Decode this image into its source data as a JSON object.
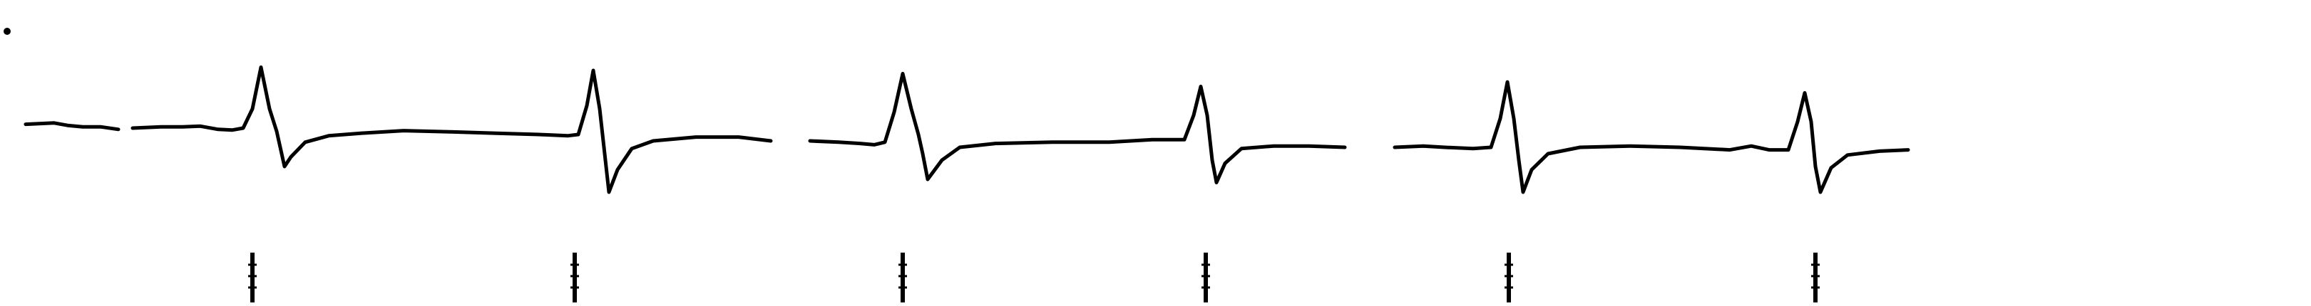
{
  "chart_data": {
    "type": "line",
    "title": "",
    "xlabel": "",
    "ylabel": "",
    "grid": false,
    "legend": "none",
    "xlim": [
      0,
      2760
    ],
    "ylim": [
      -1.2,
      1.2
    ],
    "series": [
      {
        "segments": [
          [
            [
              0,
              0.06
            ],
            [
              40,
              0.08
            ],
            [
              60,
              0.04
            ],
            [
              80,
              0.02
            ],
            [
              105,
              0.02
            ],
            [
              130,
              -0.02
            ]
          ],
          [
            [
              150,
              0.0
            ],
            [
              190,
              0.02
            ],
            [
              220,
              0.02
            ],
            [
              245,
              0.03
            ],
            [
              270,
              -0.02
            ],
            [
              290,
              -0.03
            ],
            [
              305,
              0.0
            ],
            [
              318,
              0.3
            ],
            [
              330,
              0.95
            ],
            [
              342,
              0.3
            ],
            [
              352,
              -0.05
            ],
            [
              358,
              -0.35
            ],
            [
              363,
              -0.6
            ],
            [
              372,
              -0.45
            ],
            [
              392,
              -0.22
            ],
            [
              425,
              -0.12
            ],
            [
              470,
              -0.08
            ],
            [
              530,
              -0.04
            ],
            [
              600,
              -0.06
            ],
            [
              660,
              -0.08
            ],
            [
              720,
              -0.1
            ],
            [
              760,
              -0.12
            ],
            [
              775,
              -0.1
            ],
            [
              787,
              0.35
            ],
            [
              796,
              0.9
            ],
            [
              805,
              0.3
            ],
            [
              812,
              -0.4
            ],
            [
              818,
              -1.0
            ],
            [
              830,
              -0.65
            ],
            [
              850,
              -0.32
            ],
            [
              880,
              -0.2
            ],
            [
              940,
              -0.14
            ],
            [
              1000,
              -0.14
            ],
            [
              1045,
              -0.2
            ]
          ],
          [
            [
              1100,
              -0.2
            ],
            [
              1140,
              -0.22
            ],
            [
              1170,
              -0.24
            ],
            [
              1190,
              -0.26
            ],
            [
              1205,
              -0.22
            ],
            [
              1218,
              0.25
            ],
            [
              1230,
              0.85
            ],
            [
              1242,
              0.3
            ],
            [
              1252,
              -0.1
            ],
            [
              1258,
              -0.4
            ],
            [
              1265,
              -0.8
            ],
            [
              1285,
              -0.5
            ],
            [
              1310,
              -0.3
            ],
            [
              1360,
              -0.24
            ],
            [
              1440,
              -0.22
            ],
            [
              1520,
              -0.22
            ],
            [
              1580,
              -0.18
            ],
            [
              1625,
              -0.18
            ],
            [
              1638,
              0.2
            ],
            [
              1648,
              0.65
            ],
            [
              1657,
              0.2
            ],
            [
              1664,
              -0.5
            ],
            [
              1670,
              -0.85
            ],
            [
              1682,
              -0.55
            ],
            [
              1705,
              -0.32
            ],
            [
              1750,
              -0.28
            ],
            [
              1800,
              -0.28
            ],
            [
              1850,
              -0.3
            ]
          ],
          [
            [
              1920,
              -0.3
            ],
            [
              1960,
              -0.28
            ],
            [
              1990,
              -0.3
            ],
            [
              2030,
              -0.32
            ],
            [
              2055,
              -0.3
            ],
            [
              2068,
              0.15
            ],
            [
              2078,
              0.72
            ],
            [
              2087,
              0.15
            ],
            [
              2094,
              -0.5
            ],
            [
              2100,
              -1.0
            ],
            [
              2112,
              -0.65
            ],
            [
              2135,
              -0.4
            ],
            [
              2180,
              -0.3
            ],
            [
              2250,
              -0.28
            ],
            [
              2320,
              -0.3
            ],
            [
              2390,
              -0.34
            ],
            [
              2420,
              -0.28
            ],
            [
              2445,
              -0.34
            ],
            [
              2472,
              -0.34
            ],
            [
              2485,
              0.1
            ],
            [
              2495,
              0.55
            ],
            [
              2504,
              0.1
            ],
            [
              2510,
              -0.6
            ],
            [
              2517,
              -1.0
            ],
            [
              2532,
              -0.62
            ],
            [
              2555,
              -0.42
            ],
            [
              2600,
              -0.36
            ],
            [
              2640,
              -0.34
            ]
          ]
        ]
      }
    ],
    "markers": {
      "x": [
        318,
        770,
        1230,
        1655,
        2080,
        2510
      ]
    }
  }
}
